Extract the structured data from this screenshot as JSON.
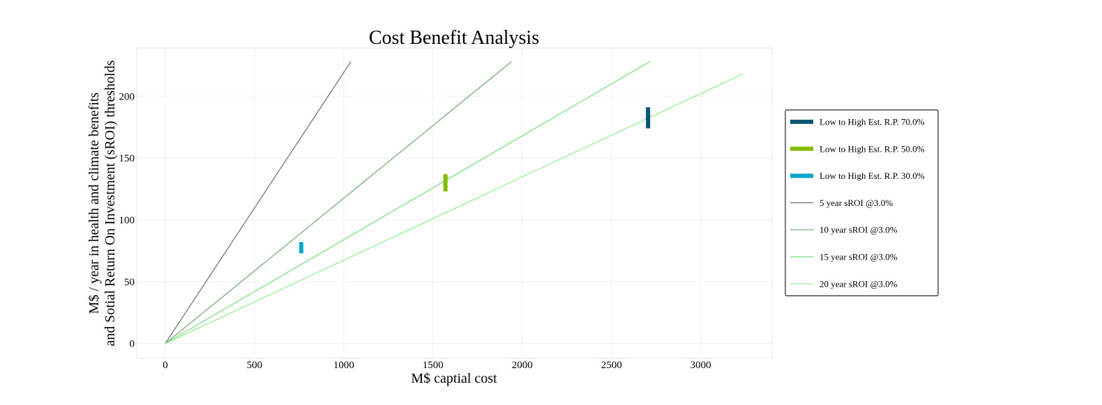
{
  "chart_data": {
    "type": "line",
    "title": "Cost Benefit Analysis",
    "xlabel": "M$ captial cost",
    "ylabel_lines": [
      "M$ / year in health and climate benefits",
      "and Sotial Return On Investment (sROI) thresholds"
    ],
    "xlim": [
      -160,
      3400
    ],
    "ylim": [
      -12,
      239
    ],
    "xticks": [
      0,
      500,
      1000,
      1500,
      2000,
      2500,
      3000
    ],
    "yticks": [
      0,
      50,
      100,
      150,
      200
    ],
    "grid": true,
    "legend_position": "right",
    "ranges": [
      {
        "name": "Low to High Est. R.P. 70.0%",
        "x": 2705,
        "y_low": 174,
        "y_high": 191,
        "color": "#0b5574"
      },
      {
        "name": "Low to High Est. R.P. 50.0%",
        "x": 1570,
        "y_low": 123,
        "y_high": 137,
        "color": "#84bd00"
      },
      {
        "name": "Low to High Est. R.P. 30.0%",
        "x": 762,
        "y_low": 73,
        "y_high": 82,
        "color": "#00a7c9"
      }
    ],
    "series": [
      {
        "name": "5 year sROI @3.0%",
        "x": [
          0,
          1040
        ],
        "y": [
          0,
          228
        ],
        "color": "#6b6b6b"
      },
      {
        "name": "10 year sROI @3.0%",
        "x": [
          0,
          1940
        ],
        "y": [
          0,
          228
        ],
        "color": "#6fa56f"
      },
      {
        "name": "15 year sROI @3.0%",
        "x": [
          0,
          2715
        ],
        "y": [
          0,
          228
        ],
        "color": "#77dd77"
      },
      {
        "name": "20 year sROI @3.0%",
        "x": [
          0,
          3235
        ],
        "y": [
          0,
          218
        ],
        "color": "#90ee90"
      }
    ]
  }
}
